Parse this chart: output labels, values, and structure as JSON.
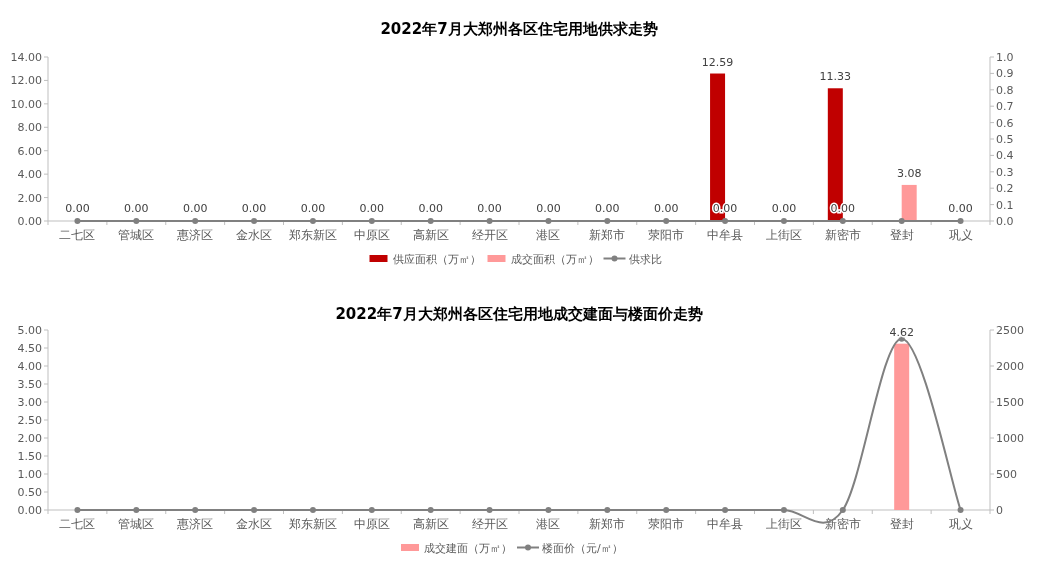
{
  "chart_data": [
    {
      "type": "bar",
      "title": "2022年7月大郑州各区住宅用地供求走势",
      "categories": [
        "二七区",
        "管城区",
        "惠济区",
        "金水区",
        "郑东新区",
        "中原区",
        "高新区",
        "经开区",
        "港区",
        "新郑市",
        "荥阳市",
        "中牟县",
        "上街区",
        "新密市",
        "登封",
        "巩义"
      ],
      "series": [
        {
          "name": "供应面积（万㎡）",
          "color": "#c00000",
          "values": [
            0,
            0,
            0,
            0,
            0,
            0,
            0,
            0,
            0,
            0,
            0,
            12.59,
            0,
            11.33,
            0,
            0
          ],
          "value_labels": [
            null,
            null,
            null,
            null,
            null,
            null,
            null,
            null,
            null,
            null,
            null,
            "12.59",
            null,
            "11.33",
            null,
            null
          ]
        },
        {
          "name": "成交面积（万㎡）",
          "color": "#ff9999",
          "values": [
            0,
            0,
            0,
            0,
            0,
            0,
            0,
            0,
            0,
            0,
            0,
            0,
            0,
            0,
            3.08,
            0
          ],
          "value_labels": [
            null,
            null,
            null,
            null,
            null,
            null,
            null,
            null,
            null,
            null,
            null,
            null,
            null,
            null,
            "3.08",
            null
          ]
        },
        {
          "name": "供求比",
          "type": "line",
          "axis": "y2",
          "color": "#808080",
          "values": [
            0,
            0,
            0,
            0,
            0,
            0,
            0,
            0,
            0,
            0,
            0,
            0,
            0,
            0,
            0,
            0
          ],
          "value_labels": [
            "0.00",
            "0.00",
            "0.00",
            "0.00",
            "0.00",
            "0.00",
            "0.00",
            "0.00",
            "0.00",
            "0.00",
            "0.00",
            "0.00",
            "0.00",
            "0.00",
            null,
            "0.00"
          ]
        }
      ],
      "ylim": [
        0,
        14
      ],
      "yticks": [
        {
          "value": 0,
          "label": "0.00"
        },
        {
          "value": 2,
          "label": "2.00"
        },
        {
          "value": 4,
          "label": "4.00"
        },
        {
          "value": 6,
          "label": "6.00"
        },
        {
          "value": 8,
          "label": "8.00"
        },
        {
          "value": 10,
          "label": "10.00"
        },
        {
          "value": 12,
          "label": "12.00"
        },
        {
          "value": 14,
          "label": "14.00"
        }
      ],
      "y2lim": [
        0,
        1
      ],
      "y2ticks": [
        {
          "value": 0,
          "label": "0.0"
        },
        {
          "value": 0.1,
          "label": "0.1"
        },
        {
          "value": 0.2,
          "label": "0.2"
        },
        {
          "value": 0.3,
          "label": "0.3"
        },
        {
          "value": 0.4,
          "label": "0.4"
        },
        {
          "value": 0.5,
          "label": "0.5"
        },
        {
          "value": 0.6,
          "label": "0.6"
        },
        {
          "value": 0.7,
          "label": "0.7"
        },
        {
          "value": 0.8,
          "label": "0.8"
        },
        {
          "value": 0.9,
          "label": "0.9"
        },
        {
          "value": 1,
          "label": "1.0"
        }
      ],
      "marker": "circle",
      "legend": "bottom"
    },
    {
      "type": "bar",
      "title": "2022年7月大郑州各区住宅用地成交建面与楼面价走势",
      "categories": [
        "二七区",
        "管城区",
        "惠济区",
        "金水区",
        "郑东新区",
        "中原区",
        "高新区",
        "经开区",
        "港区",
        "新郑市",
        "荥阳市",
        "中牟县",
        "上街区",
        "新密市",
        "登封",
        "巩义"
      ],
      "series": [
        {
          "name": "成交建面（万㎡）",
          "color": "#ff9999",
          "values": [
            0,
            0,
            0,
            0,
            0,
            0,
            0,
            0,
            0,
            0,
            0,
            0,
            0,
            0,
            4.62,
            0
          ],
          "value_labels": [
            null,
            null,
            null,
            null,
            null,
            null,
            null,
            null,
            null,
            null,
            null,
            null,
            null,
            null,
            "4.62",
            null
          ]
        },
        {
          "name": "楼面价（元/㎡）",
          "type": "line",
          "axis": "y2",
          "color": "#808080",
          "values": [
            0,
            0,
            0,
            0,
            0,
            0,
            0,
            0,
            0,
            0,
            0,
            0,
            0,
            0,
            2380,
            0
          ]
        }
      ],
      "ylim": [
        0,
        5
      ],
      "yticks": [
        {
          "value": 0,
          "label": "0.00"
        },
        {
          "value": 0.5,
          "label": "0.50"
        },
        {
          "value": 1,
          "label": "1.00"
        },
        {
          "value": 1.5,
          "label": "1.50"
        },
        {
          "value": 2,
          "label": "2.00"
        },
        {
          "value": 2.5,
          "label": "2.50"
        },
        {
          "value": 3,
          "label": "3.00"
        },
        {
          "value": 3.5,
          "label": "3.50"
        },
        {
          "value": 4,
          "label": "4.00"
        },
        {
          "value": 4.5,
          "label": "4.50"
        },
        {
          "value": 5,
          "label": "5.00"
        }
      ],
      "y2lim": [
        0,
        2500
      ],
      "y2ticks": [
        0,
        500,
        1000,
        1500,
        2000,
        2500
      ],
      "marker": "circle",
      "legend": "bottom"
    }
  ]
}
